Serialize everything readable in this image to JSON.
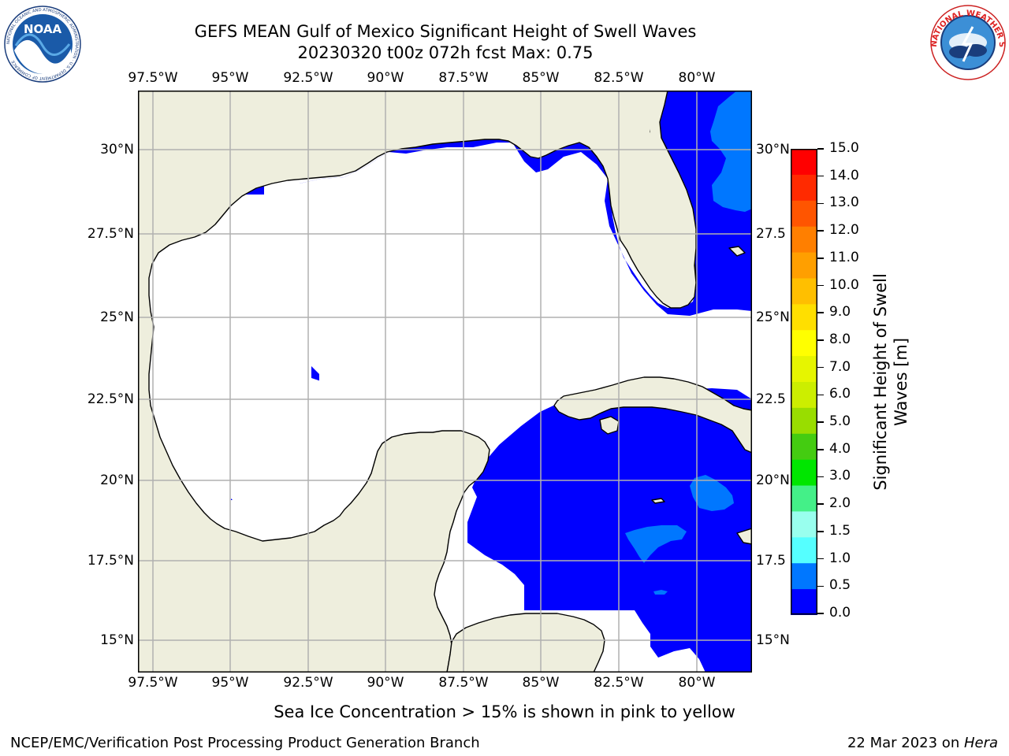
{
  "header": {
    "title_line1": "GEFS MEAN Gulf of Mexico Significant Height of Swell Waves",
    "title_line2": "20230320 t00z 072h fcst   Max: 0.75"
  },
  "logos": {
    "left": {
      "text": "NOAA",
      "ring_text": "NATIONAL OCEANIC AND ATMOSPHERIC ADMINISTRATION · U.S. DEPARTMENT OF COMMERCE"
    },
    "right": {
      "ring_text": "NATIONAL WEATHER SERVICE"
    }
  },
  "map": {
    "lon_ticks": [
      "97.5°W",
      "95°W",
      "92.5°W",
      "90°W",
      "87.5°W",
      "85°W",
      "82.5°W",
      "80°W"
    ],
    "lat_ticks": [
      "30°N",
      "27.5°N",
      "25°N",
      "22.5°N",
      "20°N",
      "17.5°N",
      "15°N"
    ],
    "lat_ticks_right": [
      "30°N",
      "27.5",
      "25°N",
      "22.5",
      "20°N",
      "17.5",
      "15°N"
    ],
    "colors": {
      "land": "#eeeedd",
      "ocean_nodata": "#ffffff",
      "level_0": "#0000ff",
      "level_0_5": "#0077ff",
      "grid": "#b0b0b0",
      "coast": "#000000"
    }
  },
  "colorbar": {
    "label_line1": "Significant Height of Swell",
    "label_line2": "Waves [m]",
    "ticks": [
      "15.0",
      "14.0",
      "13.0",
      "12.0",
      "11.0",
      "10.0",
      "9.0",
      "8.0",
      "7.0",
      "6.0",
      "5.0",
      "4.0",
      "3.0",
      "2.0",
      "1.5",
      "1.0",
      "0.5",
      "0.0"
    ],
    "colors": [
      "#ff0000",
      "#ff2a00",
      "#ff5500",
      "#ff7f00",
      "#ff9f00",
      "#ffbf00",
      "#ffdf00",
      "#ffff00",
      "#e6f500",
      "#ccee00",
      "#99dd00",
      "#44cc11",
      "#00e600",
      "#44f088",
      "#99ffee",
      "#55ffff",
      "#00eeff",
      "#0077ff",
      "#0000ff"
    ]
  },
  "footer": {
    "note": "Sea Ice Concentration > 15% is shown in pink to yellow",
    "left": "NCEP/EMC/Verification Post Processing Product Generation Branch",
    "date": "22 Mar 2023 on ",
    "machine": "Hera"
  }
}
